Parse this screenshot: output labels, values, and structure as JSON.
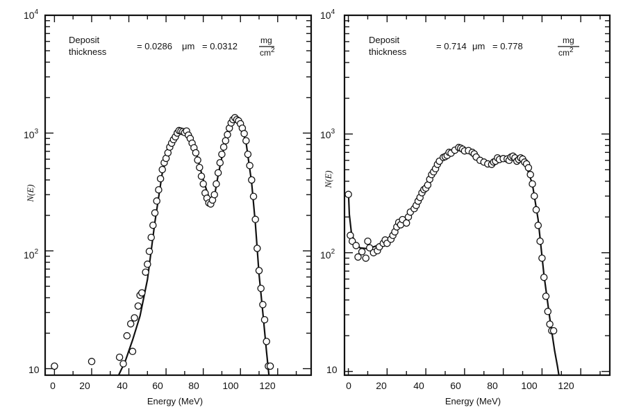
{
  "chart_data": [
    {
      "type": "scatter",
      "xlabel": "Energy (MeV)",
      "ylabel": "N(E)",
      "xlim": [
        -5,
        138
      ],
      "ylim": [
        8.8,
        10000
      ],
      "log_y": true,
      "x_ticks": [
        "0",
        "20",
        "40",
        "60",
        "80",
        "100",
        "120"
      ],
      "y_ticks": [
        {
          "base": "10",
          "exp": "4"
        },
        {
          "base": "10",
          "exp": "3"
        },
        {
          "base": "10",
          "exp": "2"
        },
        {
          "base": "10",
          "exp": ""
        }
      ],
      "annotation": {
        "line1": "Deposit",
        "line2": "thickness",
        "eq1": "= 0.0286",
        "mu": "μm",
        "eq2": "= 0.0312",
        "num": "mg",
        "den": "cm",
        "den_exp": "2"
      },
      "points": [
        [
          0,
          10.5
        ],
        [
          20,
          11.5
        ],
        [
          35,
          12.5
        ],
        [
          37,
          11
        ],
        [
          39,
          19
        ],
        [
          41,
          24
        ],
        [
          42,
          14
        ],
        [
          43,
          27
        ],
        [
          45,
          34
        ],
        [
          46,
          42
        ],
        [
          47,
          44
        ],
        [
          49,
          66
        ],
        [
          50,
          77
        ],
        [
          51,
          99
        ],
        [
          52,
          130
        ],
        [
          53,
          165
        ],
        [
          54,
          210
        ],
        [
          55,
          265
        ],
        [
          56,
          330
        ],
        [
          57,
          410
        ],
        [
          58,
          490
        ],
        [
          59,
          560
        ],
        [
          60,
          610
        ],
        [
          61,
          680
        ],
        [
          62,
          760
        ],
        [
          63,
          820
        ],
        [
          64,
          880
        ],
        [
          65,
          930
        ],
        [
          66,
          1000
        ],
        [
          67,
          1050
        ],
        [
          68,
          1040
        ],
        [
          69,
          1030
        ],
        [
          70,
          1010
        ],
        [
          71,
          1040
        ],
        [
          72,
          960
        ],
        [
          73,
          900
        ],
        [
          74,
          820
        ],
        [
          75,
          750
        ],
        [
          76,
          680
        ],
        [
          77,
          590
        ],
        [
          78,
          510
        ],
        [
          79,
          430
        ],
        [
          80,
          370
        ],
        [
          81,
          310
        ],
        [
          82,
          280
        ],
        [
          83,
          255
        ],
        [
          84,
          250
        ],
        [
          85,
          270
        ],
        [
          86,
          300
        ],
        [
          87,
          370
        ],
        [
          88,
          460
        ],
        [
          89,
          560
        ],
        [
          90,
          660
        ],
        [
          91,
          760
        ],
        [
          92,
          860
        ],
        [
          93,
          970
        ],
        [
          94,
          1100
        ],
        [
          95,
          1220
        ],
        [
          96,
          1300
        ],
        [
          97,
          1350
        ],
        [
          98,
          1300
        ],
        [
          99,
          1270
        ],
        [
          100,
          1200
        ],
        [
          101,
          1100
        ],
        [
          102,
          990
        ],
        [
          103,
          860
        ],
        [
          104,
          660
        ],
        [
          105,
          530
        ],
        [
          106,
          400
        ],
        [
          107,
          290
        ],
        [
          108,
          185
        ],
        [
          109,
          105
        ],
        [
          110,
          68
        ],
        [
          111,
          48
        ],
        [
          112,
          35
        ],
        [
          113,
          26
        ],
        [
          114,
          17
        ],
        [
          115,
          10.5
        ],
        [
          116,
          10.5
        ]
      ],
      "fit": [
        [
          34.5,
          8.8
        ],
        [
          38,
          11.5
        ],
        [
          42,
          17.5
        ],
        [
          46,
          28
        ],
        [
          50,
          57
        ],
        [
          54,
          175
        ],
        [
          58,
          460
        ],
        [
          62,
          760
        ],
        [
          66,
          990
        ],
        [
          69,
          1040
        ],
        [
          72,
          950
        ],
        [
          76,
          700
        ],
        [
          80,
          400
        ],
        [
          84,
          255
        ],
        [
          86,
          290
        ],
        [
          88,
          440
        ],
        [
          92,
          880
        ],
        [
          95,
          1230
        ],
        [
          97.5,
          1340
        ],
        [
          100,
          1180
        ],
        [
          103,
          830
        ],
        [
          106,
          380
        ],
        [
          108,
          170
        ],
        [
          110,
          63
        ],
        [
          112,
          30
        ],
        [
          114,
          14
        ],
        [
          115.3,
          8.8
        ]
      ]
    },
    {
      "type": "scatter",
      "xlabel": "Energy (MeV)",
      "ylabel": "N(E)",
      "xlim": [
        -2,
        135
      ],
      "ylim": [
        9.3,
        10000
      ],
      "log_y": true,
      "x_ticks": [
        "0",
        "20",
        "40",
        "60",
        "80",
        "100",
        "120"
      ],
      "y_ticks": [
        {
          "base": "10",
          "exp": "4"
        },
        {
          "base": "10",
          "exp": "3"
        },
        {
          "base": "10",
          "exp": "2"
        },
        {
          "base": "10",
          "exp": ""
        }
      ],
      "annotation": {
        "line1": "Deposit",
        "line2": "thickness",
        "eq1": "= 0.714",
        "mu": "μm",
        "eq2": "= 0.778",
        "num": "mg",
        "den": "cm",
        "den_exp": "2"
      },
      "points": [
        [
          0,
          310
        ],
        [
          1,
          140
        ],
        [
          2,
          125
        ],
        [
          4,
          115
        ],
        [
          5,
          92
        ],
        [
          7,
          102
        ],
        [
          9,
          90
        ],
        [
          10,
          125
        ],
        [
          11,
          110
        ],
        [
          13,
          100
        ],
        [
          15,
          104
        ],
        [
          16,
          112
        ],
        [
          18,
          120
        ],
        [
          19,
          128
        ],
        [
          20,
          120
        ],
        [
          22,
          130
        ],
        [
          23,
          140
        ],
        [
          24,
          150
        ],
        [
          25,
          165
        ],
        [
          26,
          180
        ],
        [
          27,
          172
        ],
        [
          28,
          190
        ],
        [
          30,
          178
        ],
        [
          31,
          200
        ],
        [
          32,
          220
        ],
        [
          34,
          235
        ],
        [
          35,
          250
        ],
        [
          36,
          272
        ],
        [
          37,
          292
        ],
        [
          38,
          320
        ],
        [
          39,
          340
        ],
        [
          40,
          350
        ],
        [
          41,
          372
        ],
        [
          42,
          415
        ],
        [
          43,
          455
        ],
        [
          44,
          480
        ],
        [
          45,
          510
        ],
        [
          46,
          555
        ],
        [
          47,
          590
        ],
        [
          49,
          635
        ],
        [
          50,
          645
        ],
        [
          51,
          660
        ],
        [
          52,
          700
        ],
        [
          53,
          690
        ],
        [
          55,
          730
        ],
        [
          57,
          770
        ],
        [
          58,
          760
        ],
        [
          59,
          745
        ],
        [
          60,
          720
        ],
        [
          62,
          725
        ],
        [
          64,
          700
        ],
        [
          65,
          680
        ],
        [
          66,
          640
        ],
        [
          68,
          600
        ],
        [
          70,
          580
        ],
        [
          72,
          560
        ],
        [
          74,
          555
        ],
        [
          75,
          580
        ],
        [
          76,
          590
        ],
        [
          77,
          630
        ],
        [
          78,
          610
        ],
        [
          80,
          620
        ],
        [
          82,
          615
        ],
        [
          83,
          600
        ],
        [
          84,
          640
        ],
        [
          85,
          650
        ],
        [
          86,
          630
        ],
        [
          87,
          590
        ],
        [
          88,
          610
        ],
        [
          89,
          630
        ],
        [
          90,
          615
        ],
        [
          91,
          580
        ],
        [
          92,
          560
        ],
        [
          93,
          520
        ],
        [
          94,
          455
        ],
        [
          95,
          380
        ],
        [
          96,
          300
        ],
        [
          97,
          230
        ],
        [
          98,
          170
        ],
        [
          99,
          125
        ],
        [
          100,
          90
        ],
        [
          101,
          62
        ],
        [
          102,
          43
        ],
        [
          103,
          32
        ],
        [
          104,
          25
        ],
        [
          105,
          22
        ],
        [
          106,
          22
        ]
      ],
      "fit": [
        [
          0,
          330
        ],
        [
          0.5,
          210
        ],
        [
          1.5,
          150
        ],
        [
          3,
          125
        ],
        [
          6,
          110
        ],
        [
          10,
          108
        ],
        [
          15,
          115
        ],
        [
          20,
          128
        ],
        [
          25,
          160
        ],
        [
          30,
          205
        ],
        [
          35,
          260
        ],
        [
          40,
          355
        ],
        [
          45,
          500
        ],
        [
          50,
          640
        ],
        [
          55,
          730
        ],
        [
          58,
          750
        ],
        [
          62,
          700
        ],
        [
          66,
          630
        ],
        [
          70,
          580
        ],
        [
          74,
          570
        ],
        [
          78,
          600
        ],
        [
          82,
          625
        ],
        [
          86,
          615
        ],
        [
          89,
          600
        ],
        [
          92,
          530
        ],
        [
          95,
          380
        ],
        [
          98,
          190
        ],
        [
          101,
          65
        ],
        [
          104,
          28
        ],
        [
          106.5,
          15
        ],
        [
          108,
          11
        ],
        [
          108.7,
          9.3
        ]
      ]
    }
  ]
}
